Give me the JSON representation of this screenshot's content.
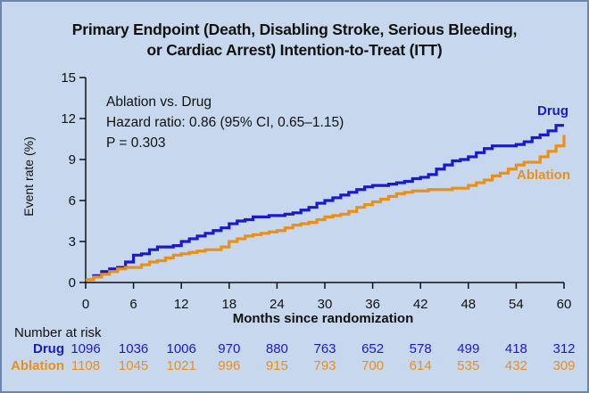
{
  "chart_data": {
    "type": "line",
    "title_line1": "Primary Endpoint (Death, Disabling Stroke, Serious Bleeding,",
    "title_line2": "or Cardiac Arrest) Intention-to-Treat (ITT)",
    "xlabel": "Months since randomization",
    "ylabel": "Event rate (%)",
    "xlim": [
      0,
      60
    ],
    "ylim": [
      0,
      15
    ],
    "x_ticks": [
      0,
      6,
      12,
      18,
      24,
      30,
      36,
      42,
      48,
      54,
      60
    ],
    "y_ticks": [
      0,
      3,
      6,
      9,
      12,
      15
    ],
    "grid": false,
    "annotation": {
      "line1": "Ablation vs. Drug",
      "line2": "Hazard ratio: 0.86 (95% CI, 0.65–1.15)",
      "line3": "P = 0.303"
    },
    "series": [
      {
        "name": "Drug",
        "color": "#1a1acc",
        "x": [
          0,
          1,
          2,
          3,
          4,
          5,
          6,
          7,
          8,
          9,
          10,
          11,
          12,
          13,
          14,
          15,
          16,
          17,
          18,
          19,
          20,
          21,
          22,
          23,
          24,
          25,
          26,
          27,
          28,
          29,
          30,
          31,
          32,
          33,
          34,
          35,
          36,
          37,
          38,
          39,
          40,
          41,
          42,
          43,
          44,
          45,
          46,
          47,
          48,
          49,
          50,
          51,
          52,
          53,
          54,
          55,
          56,
          57,
          58,
          59,
          60
        ],
        "values": [
          0.2,
          0.5,
          0.8,
          1.0,
          1.1,
          1.5,
          2.0,
          2.1,
          2.4,
          2.6,
          2.6,
          2.7,
          3.0,
          3.2,
          3.4,
          3.6,
          3.8,
          4.0,
          4.3,
          4.5,
          4.6,
          4.8,
          4.8,
          4.9,
          4.9,
          5.0,
          5.1,
          5.3,
          5.5,
          5.8,
          6.0,
          6.2,
          6.4,
          6.6,
          6.8,
          7.0,
          7.1,
          7.1,
          7.2,
          7.3,
          7.4,
          7.6,
          7.7,
          7.9,
          8.3,
          8.6,
          8.9,
          9.0,
          9.2,
          9.5,
          9.8,
          10.0,
          10.0,
          10.0,
          10.1,
          10.3,
          10.6,
          10.8,
          11.1,
          11.5,
          11.5
        ]
      },
      {
        "name": "Ablation",
        "color": "#e8901a",
        "x": [
          0,
          1,
          2,
          3,
          4,
          5,
          6,
          7,
          8,
          9,
          10,
          11,
          12,
          13,
          14,
          15,
          16,
          17,
          18,
          19,
          20,
          21,
          22,
          23,
          24,
          25,
          26,
          27,
          28,
          29,
          30,
          31,
          32,
          33,
          34,
          35,
          36,
          37,
          38,
          39,
          40,
          41,
          42,
          43,
          44,
          45,
          46,
          47,
          48,
          49,
          50,
          51,
          52,
          53,
          54,
          55,
          56,
          57,
          58,
          59,
          60
        ],
        "values": [
          0.2,
          0.4,
          0.6,
          0.8,
          1.0,
          1.1,
          1.1,
          1.3,
          1.5,
          1.6,
          1.8,
          2.0,
          2.1,
          2.2,
          2.3,
          2.4,
          2.4,
          2.6,
          3.0,
          3.2,
          3.4,
          3.5,
          3.6,
          3.7,
          3.8,
          4.0,
          4.2,
          4.3,
          4.4,
          4.6,
          4.8,
          4.9,
          5.0,
          5.2,
          5.5,
          5.7,
          5.9,
          6.1,
          6.3,
          6.5,
          6.6,
          6.7,
          6.7,
          6.8,
          6.8,
          6.8,
          6.9,
          6.9,
          7.1,
          7.3,
          7.5,
          7.8,
          8.0,
          8.3,
          8.6,
          8.8,
          8.8,
          9.2,
          9.6,
          10.0,
          10.8
        ]
      }
    ],
    "risk_table": {
      "title": "Number at risk",
      "months": [
        0,
        6,
        12,
        18,
        24,
        30,
        36,
        42,
        48,
        54,
        60
      ],
      "drug_label": "Drug",
      "drug": [
        "1096",
        "1036",
        "1006",
        "970",
        "880",
        "763",
        "652",
        "578",
        "499",
        "418",
        "312"
      ],
      "ablation_label": "Ablation",
      "ablation": [
        "1108",
        "1045",
        "1021",
        "996",
        "915",
        "793",
        "700",
        "614",
        "535",
        "432",
        "309"
      ]
    }
  }
}
